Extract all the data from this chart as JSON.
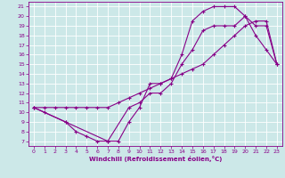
{
  "xlabel": "Windchill (Refroidissement éolien,°C)",
  "bg_color": "#cce8e8",
  "grid_color": "#ffffff",
  "line_color": "#880088",
  "xlim": [
    -0.5,
    23.5
  ],
  "ylim": [
    6.5,
    21.5
  ],
  "xticks": [
    0,
    1,
    2,
    3,
    4,
    5,
    6,
    7,
    8,
    9,
    10,
    11,
    12,
    13,
    14,
    15,
    16,
    17,
    18,
    19,
    20,
    21,
    22,
    23
  ],
  "yticks": [
    7,
    8,
    9,
    10,
    11,
    12,
    13,
    14,
    15,
    16,
    17,
    18,
    19,
    20,
    21
  ],
  "line1_x": [
    0,
    1,
    3,
    4,
    5,
    6,
    7,
    8,
    9,
    10,
    11,
    12,
    13,
    14,
    15,
    16,
    17,
    18,
    19,
    20,
    21,
    22,
    23
  ],
  "line1_y": [
    10.5,
    10,
    9,
    8,
    7.5,
    7,
    7,
    7,
    9,
    10.5,
    13,
    13,
    13.5,
    16,
    19.5,
    20.5,
    21,
    21,
    21,
    20,
    18,
    16.5,
    15
  ],
  "line2_x": [
    0,
    3,
    7,
    9,
    10,
    11,
    12,
    13,
    14,
    15,
    16,
    17,
    18,
    19,
    20,
    21,
    22,
    23
  ],
  "line2_y": [
    10.5,
    9,
    7,
    10.5,
    11,
    12,
    12,
    13,
    15,
    16.5,
    18.5,
    19,
    19,
    19,
    20,
    19,
    19,
    15
  ],
  "line3_x": [
    0,
    1,
    2,
    3,
    4,
    5,
    6,
    7,
    8,
    9,
    10,
    11,
    12,
    13,
    14,
    15,
    16,
    17,
    18,
    19,
    20,
    21,
    22,
    23
  ],
  "line3_y": [
    10.5,
    10.5,
    10.5,
    10.5,
    10.5,
    10.5,
    10.5,
    10.5,
    11,
    11.5,
    12,
    12.5,
    13,
    13.5,
    14,
    14.5,
    15,
    16,
    17,
    18,
    19,
    19.5,
    19.5,
    15
  ]
}
